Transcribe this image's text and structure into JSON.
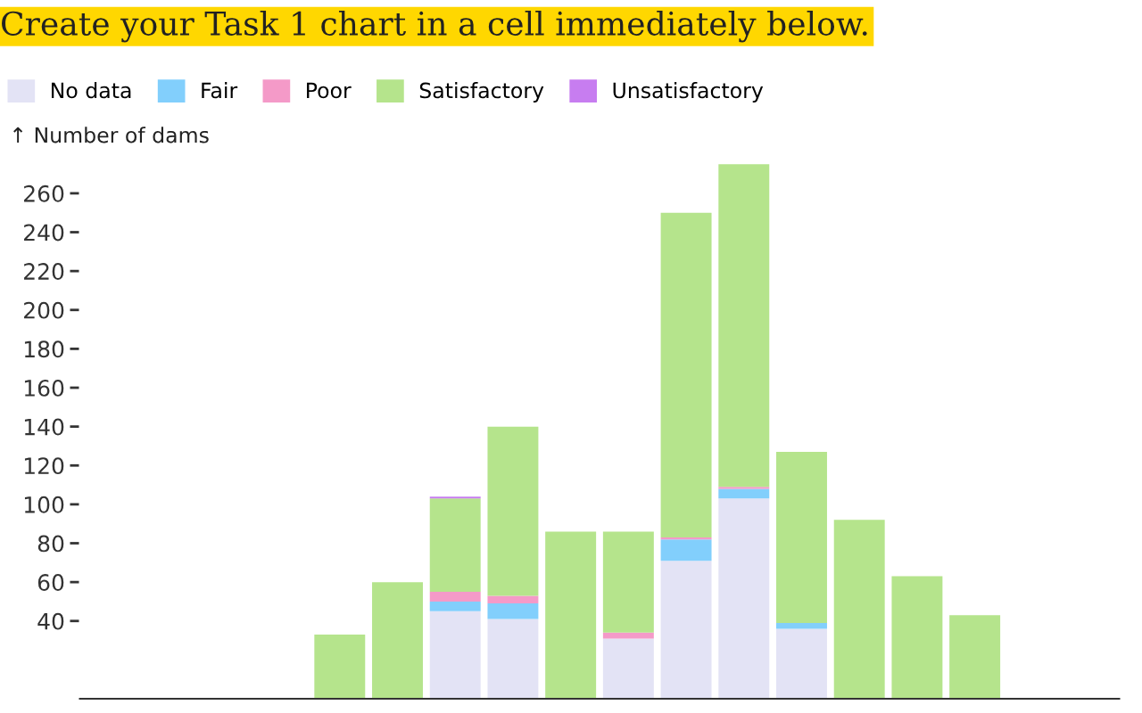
{
  "chart_data": {
    "type": "bar",
    "stacked": true,
    "title": "Create your Task 1 chart in a cell immediately below.",
    "ylabel": "↑ Number of dams",
    "categories": [
      null,
      null,
      null,
      null,
      null,
      null,
      null,
      null,
      null,
      null,
      null,
      null,
      null,
      null,
      null,
      null,
      null,
      null
    ],
    "series": [
      {
        "name": "No data",
        "color": "#e3e3f5",
        "values": [
          null,
          null,
          null,
          null,
          null,
          null,
          45,
          41,
          null,
          31,
          71,
          103,
          36,
          null,
          null,
          null,
          null,
          null
        ]
      },
      {
        "name": "Fair",
        "color": "#82cffc",
        "values": [
          null,
          null,
          null,
          null,
          null,
          null,
          5,
          8,
          null,
          null,
          11,
          5,
          3,
          null,
          null,
          null,
          null,
          null
        ]
      },
      {
        "name": "Poor",
        "color": "#f49ac8",
        "values": [
          null,
          null,
          null,
          null,
          null,
          null,
          5,
          4,
          null,
          3,
          1,
          1,
          null,
          null,
          null,
          null,
          null,
          null
        ]
      },
      {
        "name": "Satisfactory",
        "color": "#b5e48c",
        "values": [
          null,
          null,
          null,
          null,
          33,
          60,
          48,
          87,
          86,
          52,
          167,
          166,
          88,
          92,
          63,
          43,
          null,
          null
        ]
      },
      {
        "name": "Unsatisfactory",
        "color": "#c77df0",
        "values": [
          null,
          null,
          null,
          null,
          null,
          null,
          1,
          null,
          null,
          null,
          null,
          null,
          null,
          null,
          null,
          null,
          null,
          null
        ]
      }
    ],
    "ylim": [
      0,
      276
    ],
    "yticks": [
      40,
      60,
      80,
      100,
      120,
      140,
      160,
      180,
      200,
      220,
      240,
      260
    ],
    "legend": "top left",
    "grid": false
  }
}
